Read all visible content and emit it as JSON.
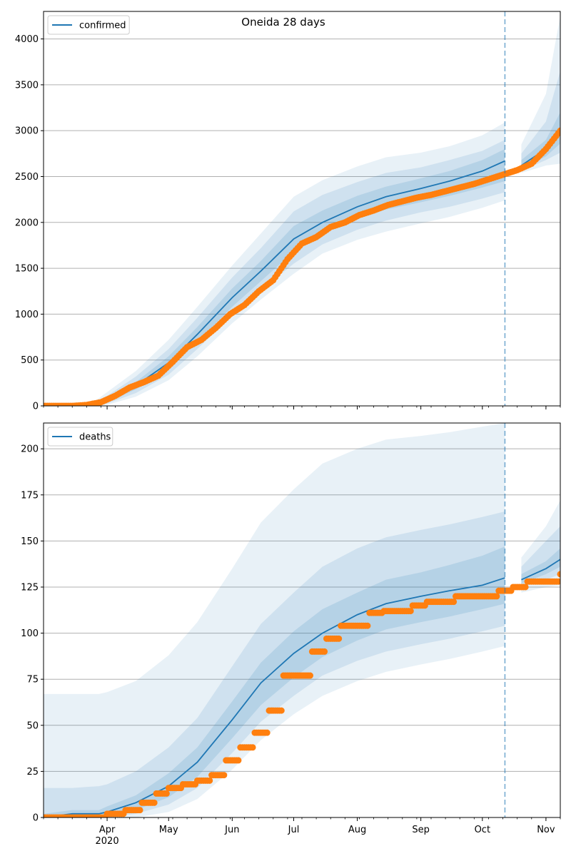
{
  "figure": {
    "title": "Oneida 28 days",
    "year_label": "2020",
    "month_labels": [
      "Apr",
      "May",
      "Jun",
      "Jul",
      "Aug",
      "Sep",
      "Oct",
      "Nov"
    ]
  },
  "colors": {
    "model_line": "#1f77b4",
    "band": "#1f77b4",
    "observed": "#ff7f0e",
    "grid": "#b0b0b0",
    "forecast_divider": "#1f77b4"
  },
  "chart_data": [
    {
      "type": "line",
      "title": "Oneida 28 days",
      "legend": {
        "label": "confirmed",
        "placement": "top-left"
      },
      "xlabel": "",
      "ylabel": "",
      "x_range": [
        "2020-03-01",
        "2020-11-08"
      ],
      "ylim": [
        0,
        4300
      ],
      "yticks": [
        0,
        500,
        1000,
        1500,
        2000,
        2500,
        3000,
        3500,
        4000
      ],
      "grid": "horizontal",
      "forecast_start": "2020-10-12",
      "model": {
        "name": "confirmed",
        "x": [
          "2020-03-01",
          "2020-03-15",
          "2020-03-25",
          "2020-04-01",
          "2020-04-15",
          "2020-05-01",
          "2020-05-15",
          "2020-06-01",
          "2020-06-15",
          "2020-07-01",
          "2020-07-15",
          "2020-08-01",
          "2020-08-15",
          "2020-09-01",
          "2020-09-15",
          "2020-10-01",
          "2020-10-12",
          "2020-10-20",
          "2020-11-01",
          "2020-11-08"
        ],
        "y": [
          0,
          2,
          10,
          60,
          220,
          470,
          780,
          1180,
          1470,
          1820,
          2000,
          2170,
          2280,
          2370,
          2450,
          2560,
          2670,
          2620,
          2800,
          3000
        ],
        "band_inner": {
          "lower": [
            0,
            0,
            5,
            40,
            180,
            400,
            700,
            1080,
            1360,
            1680,
            1880,
            2040,
            2140,
            2220,
            2290,
            2380,
            2450,
            2580,
            2720,
            2860
          ],
          "upper": [
            0,
            5,
            18,
            80,
            260,
            540,
            860,
            1280,
            1580,
            1960,
            2130,
            2290,
            2390,
            2480,
            2560,
            2680,
            2800,
            2680,
            2900,
            3200
          ]
        },
        "band_middle": {
          "lower": [
            0,
            0,
            2,
            25,
            140,
            340,
            620,
            990,
            1260,
            1550,
            1760,
            1920,
            2020,
            2110,
            2170,
            2260,
            2330,
            2560,
            2680,
            2760
          ],
          "upper": [
            0,
            8,
            25,
            110,
            320,
            620,
            960,
            1400,
            1720,
            2120,
            2300,
            2440,
            2540,
            2600,
            2680,
            2780,
            2900,
            2750,
            3100,
            3650
          ]
        },
        "band_outer": {
          "lower": [
            0,
            0,
            0,
            12,
            100,
            280,
            540,
            900,
            1160,
            1440,
            1660,
            1810,
            1900,
            1990,
            2060,
            2160,
            2240,
            2540,
            2620,
            2640
          ],
          "upper": [
            0,
            12,
            35,
            150,
            380,
            720,
            1080,
            1530,
            1880,
            2280,
            2460,
            2610,
            2710,
            2760,
            2830,
            2950,
            3090,
            2850,
            3400,
            4250
          ]
        }
      },
      "observed": {
        "x": [
          "2020-03-01",
          "2020-03-15",
          "2020-03-22",
          "2020-03-29",
          "2020-04-05",
          "2020-04-12",
          "2020-04-19",
          "2020-04-26",
          "2020-05-03",
          "2020-05-10",
          "2020-05-17",
          "2020-05-24",
          "2020-05-31",
          "2020-06-07",
          "2020-06-14",
          "2020-06-21",
          "2020-06-28",
          "2020-07-05",
          "2020-07-12",
          "2020-07-19",
          "2020-07-26",
          "2020-08-02",
          "2020-08-09",
          "2020-08-16",
          "2020-08-23",
          "2020-08-30",
          "2020-09-06",
          "2020-09-13",
          "2020-09-20",
          "2020-09-27",
          "2020-10-04",
          "2020-10-11",
          "2020-10-18",
          "2020-10-25",
          "2020-11-01",
          "2020-11-08"
        ],
        "y": [
          0,
          0,
          10,
          40,
          110,
          200,
          260,
          330,
          480,
          640,
          720,
          850,
          1000,
          1100,
          1250,
          1370,
          1600,
          1770,
          1840,
          1950,
          2000,
          2080,
          2130,
          2190,
          2230,
          2270,
          2300,
          2340,
          2380,
          2420,
          2470,
          2520,
          2570,
          2640,
          2800,
          3000
        ]
      }
    },
    {
      "type": "line",
      "title": "",
      "legend": {
        "label": "deaths",
        "placement": "top-left"
      },
      "xlabel": "",
      "ylabel": "",
      "x_range": [
        "2020-03-01",
        "2020-11-08"
      ],
      "ylim": [
        0,
        214
      ],
      "yticks": [
        0,
        25,
        50,
        75,
        100,
        125,
        150,
        175,
        200
      ],
      "grid": "horizontal",
      "forecast_start": "2020-10-12",
      "model": {
        "name": "deaths",
        "x": [
          "2020-03-01",
          "2020-03-15",
          "2020-03-28",
          "2020-04-01",
          "2020-04-15",
          "2020-05-01",
          "2020-05-15",
          "2020-06-01",
          "2020-06-15",
          "2020-07-01",
          "2020-07-15",
          "2020-08-01",
          "2020-08-15",
          "2020-09-01",
          "2020-09-15",
          "2020-10-01",
          "2020-10-12",
          "2020-10-20",
          "2020-11-01",
          "2020-11-08"
        ],
        "y": [
          0,
          2,
          2,
          3,
          8,
          17,
          30,
          53,
          73,
          89,
          100,
          110,
          116,
          120,
          123,
          126,
          130,
          129,
          135,
          140
        ],
        "band_inner": {
          "lower": [
            0,
            0,
            0,
            1,
            4,
            11,
            22,
            43,
            61,
            76,
            87,
            96,
            102,
            106,
            109,
            113,
            116,
            127,
            132,
            136
          ],
          "upper": [
            2,
            4,
            4,
            6,
            12,
            24,
            38,
            63,
            84,
            101,
            113,
            122,
            129,
            133,
            137,
            142,
            147,
            132,
            139,
            146
          ]
        },
        "band_middle": {
          "lower": [
            0,
            0,
            0,
            0,
            2,
            7,
            16,
            35,
            52,
            66,
            77,
            85,
            90,
            94,
            97,
            101,
            104,
            125,
            129,
            132
          ],
          "upper": [
            16,
            16,
            17,
            18,
            25,
            38,
            54,
            82,
            105,
            122,
            136,
            146,
            152,
            156,
            159,
            163,
            166,
            136,
            150,
            158
          ]
        },
        "band_outer": {
          "lower": [
            0,
            0,
            0,
            0,
            0,
            3,
            10,
            26,
            42,
            56,
            66,
            74,
            79,
            83,
            86,
            90,
            93,
            122,
            125,
            126
          ],
          "upper": [
            67,
            67,
            67,
            68,
            74,
            88,
            106,
            135,
            160,
            178,
            192,
            200,
            205,
            207,
            209,
            212,
            214,
            141,
            158,
            172
          ]
        }
      },
      "observed": {
        "x": [
          "2020-03-01",
          "2020-03-20",
          "2020-04-01",
          "2020-04-10",
          "2020-04-18",
          "2020-04-25",
          "2020-05-01",
          "2020-05-08",
          "2020-05-15",
          "2020-05-22",
          "2020-05-29",
          "2020-06-05",
          "2020-06-12",
          "2020-06-19",
          "2020-06-26",
          "2020-07-03",
          "2020-07-10",
          "2020-07-17",
          "2020-07-24",
          "2020-07-31",
          "2020-08-07",
          "2020-08-14",
          "2020-08-21",
          "2020-08-28",
          "2020-09-04",
          "2020-09-11",
          "2020-09-18",
          "2020-09-25",
          "2020-10-02",
          "2020-10-09",
          "2020-10-16",
          "2020-10-23",
          "2020-10-30",
          "2020-11-03",
          "2020-11-08"
        ],
        "y": [
          0,
          0,
          2,
          4,
          8,
          13,
          16,
          18,
          20,
          23,
          31,
          38,
          46,
          58,
          77,
          77,
          90,
          97,
          104,
          104,
          111,
          112,
          112,
          115,
          117,
          117,
          120,
          120,
          120,
          123,
          125,
          128,
          128,
          128,
          132
        ]
      }
    }
  ]
}
